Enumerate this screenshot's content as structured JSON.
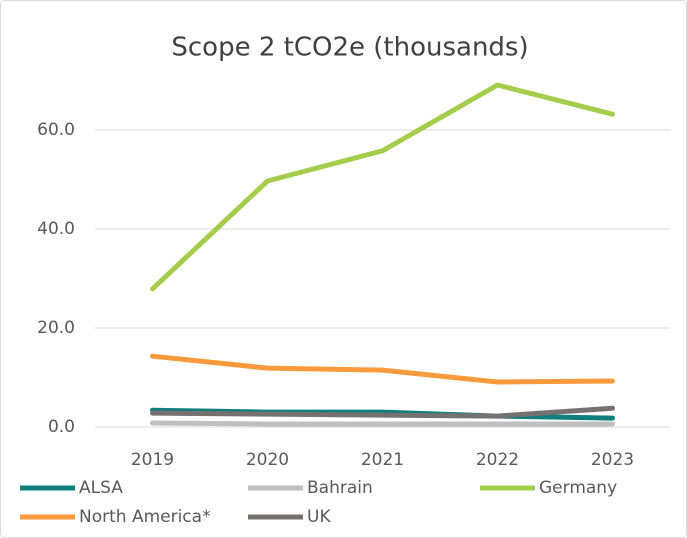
{
  "chart_data": {
    "type": "line",
    "title": "Scope 2 tCO2e (thousands)",
    "categories": [
      "2019",
      "2020",
      "2021",
      "2022",
      "2023"
    ],
    "series": [
      {
        "name": "ALSA",
        "color": "#0f7f7c",
        "values": [
          3.4,
          3.0,
          3.0,
          2.2,
          1.8
        ]
      },
      {
        "name": "Bahrain",
        "color": "#bfbfbf",
        "values": [
          0.8,
          0.6,
          0.6,
          0.6,
          0.6
        ]
      },
      {
        "name": "Germany",
        "color": "#a4cd4c",
        "values": [
          27.9,
          49.7,
          55.8,
          69.1,
          63.2
        ]
      },
      {
        "name": "North America*",
        "color": "#fb9a3c",
        "values": [
          14.3,
          11.9,
          11.5,
          9.1,
          9.3
        ]
      },
      {
        "name": "UK",
        "color": "#757171",
        "values": [
          2.8,
          2.6,
          2.4,
          2.2,
          3.8
        ]
      }
    ],
    "ylim": [
      0,
      70
    ],
    "yticks": [
      {
        "value": 0,
        "label": "0.0"
      },
      {
        "value": 20,
        "label": "20.0"
      },
      {
        "value": 40,
        "label": "40.0"
      },
      {
        "value": 60,
        "label": "60.0"
      }
    ],
    "grid": true,
    "legend": "bottom"
  }
}
